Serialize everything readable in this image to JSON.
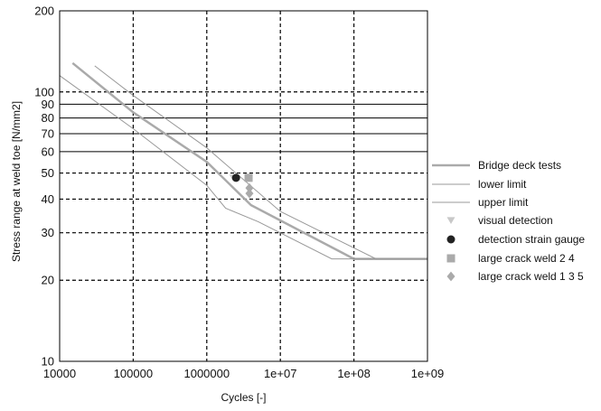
{
  "chart_data": {
    "type": "line",
    "xlabel": "Cycles [-]",
    "ylabel": "Stress range at weld toe [N/mm2]",
    "xscale": "log",
    "yscale": "log",
    "xlim": [
      10000,
      1000000000
    ],
    "ylim": [
      10,
      200
    ],
    "grid": true,
    "legend_position": "right",
    "x_ticks": [
      {
        "value": 10000,
        "label": "10000"
      },
      {
        "value": 100000,
        "label": "100000"
      },
      {
        "value": 1000000,
        "label": "1000000"
      },
      {
        "value": 10000000,
        "label": "1e+07"
      },
      {
        "value": 100000000,
        "label": "1e+08"
      },
      {
        "value": 1000000000,
        "label": "1e+09"
      }
    ],
    "y_ticks": [
      {
        "value": 10,
        "label": "10"
      },
      {
        "value": 20,
        "label": "20"
      },
      {
        "value": 30,
        "label": "30"
      },
      {
        "value": 40,
        "label": "40"
      },
      {
        "value": 50,
        "label": "50"
      },
      {
        "value": 60,
        "label": "60"
      },
      {
        "value": 70,
        "label": "70"
      },
      {
        "value": 80,
        "label": "80"
      },
      {
        "value": 90,
        "label": "90"
      },
      {
        "value": 100,
        "label": "100"
      },
      {
        "value": 200,
        "label": "200"
      }
    ],
    "dashed_y_grid": [
      20,
      30,
      40,
      50,
      100,
      200
    ],
    "series": [
      {
        "name": "Bridge deck tests",
        "kind": "line",
        "color": "#aaaaaa",
        "width": 2.5,
        "points": [
          [
            15000,
            128
          ],
          [
            100000,
            84
          ],
          [
            1000000,
            55
          ],
          [
            4000000,
            38
          ],
          [
            100000000,
            24
          ],
          [
            1000000000,
            24
          ]
        ]
      },
      {
        "name": "lower limit",
        "kind": "line",
        "color": "#999999",
        "width": 1,
        "points": [
          [
            10000,
            115
          ],
          [
            100000,
            73
          ],
          [
            1000000,
            45
          ],
          [
            1800000,
            37
          ],
          [
            5000000,
            33
          ],
          [
            50000000,
            24
          ],
          [
            1000000000,
            24
          ]
        ]
      },
      {
        "name": "upper limit",
        "kind": "line",
        "color": "#999999",
        "width": 1,
        "points": [
          [
            30000,
            125
          ],
          [
            100000,
            97
          ],
          [
            1000000,
            62
          ],
          [
            10000000,
            36
          ],
          [
            200000000,
            24
          ],
          [
            1000000000,
            24
          ]
        ]
      },
      {
        "name": "visual detection",
        "kind": "marker",
        "marker": "triangle-down",
        "color": "#c8c8c8",
        "points": [
          [
            2300000,
            48
          ]
        ]
      },
      {
        "name": "detection strain gauge",
        "kind": "marker",
        "marker": "circle",
        "color": "#222222",
        "points": [
          [
            2500000,
            48
          ]
        ]
      },
      {
        "name": "large crack weld 2 4",
        "kind": "marker",
        "marker": "square",
        "color": "#aaaaaa",
        "points": [
          [
            3700000,
            48
          ]
        ]
      },
      {
        "name": "large crack weld 1 3 5",
        "kind": "marker",
        "marker": "diamond",
        "color": "#aaaaaa",
        "points": [
          [
            3800000,
            44
          ],
          [
            3800000,
            42
          ]
        ]
      }
    ]
  }
}
